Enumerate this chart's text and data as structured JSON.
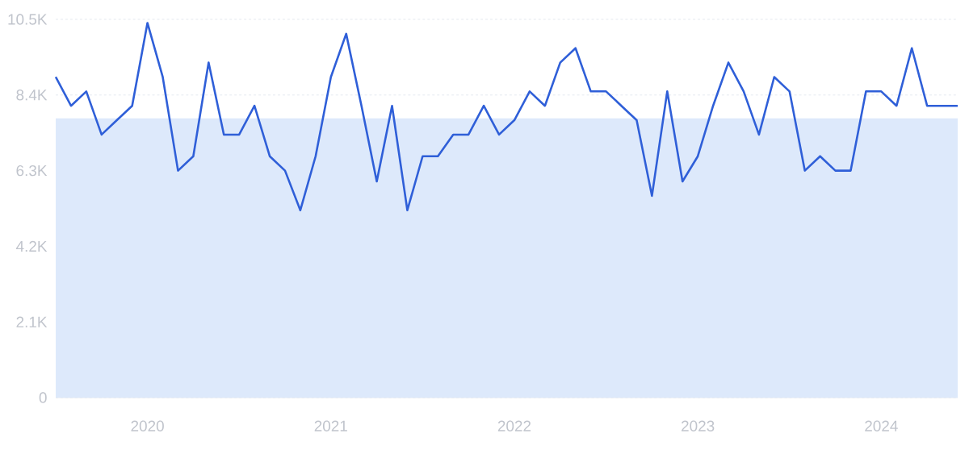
{
  "chart_data": {
    "type": "line",
    "color": "#2f5fd8",
    "grid": "y",
    "x": [
      "2019-07",
      "2019-08",
      "2019-09",
      "2019-10",
      "2019-11",
      "2019-12",
      "2020-01",
      "2020-02",
      "2020-03",
      "2020-04",
      "2020-05",
      "2020-06",
      "2020-07",
      "2020-08",
      "2020-09",
      "2020-10",
      "2020-11",
      "2020-12",
      "2021-01",
      "2021-02",
      "2021-03",
      "2021-04",
      "2021-05",
      "2021-06",
      "2021-07",
      "2021-08",
      "2021-09",
      "2021-10",
      "2021-11",
      "2021-12",
      "2022-01",
      "2022-02",
      "2022-03",
      "2022-04",
      "2022-05",
      "2022-06",
      "2022-07",
      "2022-08",
      "2022-09",
      "2022-10",
      "2022-11",
      "2022-12",
      "2023-01",
      "2023-02",
      "2023-03",
      "2023-04",
      "2023-05",
      "2023-06",
      "2023-07",
      "2023-08",
      "2023-09",
      "2023-10",
      "2023-11",
      "2023-12",
      "2024-01",
      "2024-02",
      "2024-03",
      "2024-04",
      "2024-05",
      "2024-06"
    ],
    "values": [
      8900,
      8100,
      8500,
      7300,
      7700,
      8100,
      10400,
      8900,
      6300,
      6700,
      9300,
      7300,
      7300,
      8100,
      6700,
      6300,
      5200,
      6700,
      8900,
      10100,
      8100,
      6000,
      8100,
      5200,
      6700,
      6700,
      7300,
      7300,
      8100,
      7300,
      7700,
      8500,
      8100,
      9300,
      9700,
      8500,
      8500,
      8100,
      7700,
      5600,
      8500,
      6000,
      6700,
      8100,
      9300,
      8500,
      7300,
      8900,
      8500,
      6300,
      6700,
      6300,
      6300,
      8500,
      8500,
      8100,
      9700,
      8100,
      8100,
      8100
    ],
    "xlim": [
      "2019-07",
      "2024-06"
    ],
    "xticks": [
      {
        "value": "2020-01",
        "label": "2020"
      },
      {
        "value": "2021-01",
        "label": "2021"
      },
      {
        "value": "2022-01",
        "label": "2022"
      },
      {
        "value": "2023-01",
        "label": "2023"
      },
      {
        "value": "2024-01",
        "label": "2024"
      }
    ],
    "ylim": [
      0,
      10500
    ],
    "yticks": [
      0,
      {
        "value": 2100,
        "label": "2.1K"
      },
      {
        "value": 4200,
        "label": "4.2K"
      },
      {
        "value": 6300,
        "label": "6.3K"
      },
      {
        "value": 8400,
        "label": "8.4K"
      },
      {
        "value": 10500,
        "label": "10.5K"
      }
    ],
    "bands": [
      {
        "axis": "y",
        "from": 0,
        "to": 7750,
        "color": "#dde9fb"
      }
    ]
  }
}
